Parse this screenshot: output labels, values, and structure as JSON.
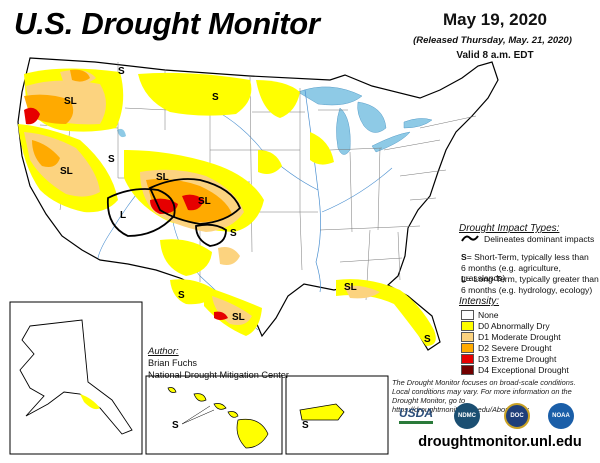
{
  "header": {
    "title": "U.S. Drought Monitor",
    "date": "May 19, 2020",
    "released": "(Released Thursday, May. 21, 2020)",
    "valid": "Valid 8 a.m. EDT"
  },
  "impact_types": {
    "title": "Drought Impact Types:",
    "delineates": "Delineates dominant impacts",
    "short_term_code": "S",
    "short_term_line1": "= Short-Term, typically less than",
    "short_term_line2": "6 months (e.g. agriculture, grasslands)",
    "long_term_code": "L",
    "long_term_line1": "= Long-Term, typically greater than",
    "long_term_line2": "6 months (e.g. hydrology, ecology)"
  },
  "intensity": {
    "title": "Intensity:",
    "categories": [
      {
        "label": "None",
        "color": "#ffffff"
      },
      {
        "label": "D0 Abnormally Dry",
        "color": "#ffff00"
      },
      {
        "label": "D1 Moderate Drought",
        "color": "#fcd37f"
      },
      {
        "label": "D2 Severe Drought",
        "color": "#ffaa00"
      },
      {
        "label": "D3 Extreme Drought",
        "color": "#e60000"
      },
      {
        "label": "D4 Exceptional Drought",
        "color": "#730000"
      }
    ]
  },
  "author": {
    "title": "Author:",
    "name": "Brian Fuchs",
    "org": "National Drought Mitigation Center"
  },
  "footnote": {
    "line1": "The Drought Monitor focuses on broad-scale conditions.",
    "line2": "Local conditions may vary. For more information on the",
    "line3": "Drought Monitor, go to https://droughtmonitor.unl.edu/About.aspx"
  },
  "logos": {
    "usda": "USDA",
    "ndmc": "NDMC",
    "doc": "DOC",
    "noaa": "NOAA"
  },
  "website": "droughtmonitor.unl.edu",
  "map_labels": {
    "pnw_s": "S",
    "oregon_sl": "SL",
    "nevada_sl": "SL",
    "wyoming_s": "S",
    "montana_s": "S",
    "utah_s": "S",
    "colorado_sl": "SL",
    "four_corners_l": "L",
    "sangre_sl": "SL",
    "new_mexico_s": "S",
    "gulf_sl": "SL",
    "texas_s": "S",
    "texas_sl": "SL",
    "florida_s": "S",
    "hawaii_s": "S",
    "pr_s": "S"
  }
}
